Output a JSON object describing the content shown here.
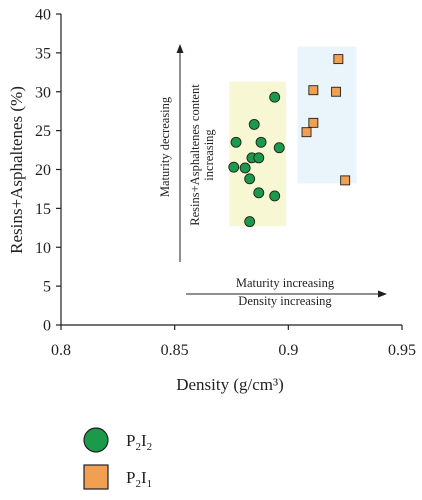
{
  "chart_data": {
    "type": "scatter",
    "xlabel": "Density (g/cm³)",
    "ylabel": "Resins+Asphaltenes (%)",
    "xlim": [
      0.8,
      0.95
    ],
    "ylim": [
      0,
      40
    ],
    "x_ticks": [
      "0.8",
      "0.85",
      "0.9",
      "0.95"
    ],
    "x_tick_values": [
      0.8,
      0.85,
      0.9,
      0.95
    ],
    "y_ticks": [
      "0",
      "5",
      "10",
      "15",
      "20",
      "25",
      "30",
      "35",
      "40"
    ],
    "y_tick_values": [
      0,
      5,
      10,
      15,
      20,
      25,
      30,
      35,
      40
    ],
    "grid": false,
    "legend_position": "bottom-left",
    "series": [
      {
        "name_parts": {
          "base1": "P",
          "sub1": "2",
          "base2": "I",
          "sub2": "2"
        },
        "marker": "circle",
        "color": "#1a9a4a",
        "points": [
          {
            "x": 0.894,
            "y": 29.3
          },
          {
            "x": 0.885,
            "y": 25.8
          },
          {
            "x": 0.877,
            "y": 23.5
          },
          {
            "x": 0.888,
            "y": 23.5
          },
          {
            "x": 0.896,
            "y": 22.8
          },
          {
            "x": 0.884,
            "y": 21.5
          },
          {
            "x": 0.887,
            "y": 21.5
          },
          {
            "x": 0.876,
            "y": 20.3
          },
          {
            "x": 0.881,
            "y": 20.2
          },
          {
            "x": 0.883,
            "y": 18.8
          },
          {
            "x": 0.887,
            "y": 17.0
          },
          {
            "x": 0.894,
            "y": 16.6
          },
          {
            "x": 0.883,
            "y": 13.3
          }
        ]
      },
      {
        "name_parts": {
          "base1": "P",
          "sub1": "2",
          "base2": "I",
          "sub2": "1"
        },
        "marker": "square",
        "color": "#f0a050",
        "points": [
          {
            "x": 0.922,
            "y": 34.2
          },
          {
            "x": 0.911,
            "y": 30.2
          },
          {
            "x": 0.921,
            "y": 30.0
          },
          {
            "x": 0.911,
            "y": 26.0
          },
          {
            "x": 0.908,
            "y": 24.8
          },
          {
            "x": 0.925,
            "y": 18.6
          }
        ]
      }
    ],
    "regions": [
      {
        "x0": 0.874,
        "x1": 0.899,
        "y0": 12.7,
        "y1": 31.3,
        "color": "#f7f7d4"
      },
      {
        "x0": 0.904,
        "x1": 0.93,
        "y0": 18.2,
        "y1": 35.8,
        "color": "#eaf4fb"
      }
    ],
    "annotations": {
      "vertical_arrow_text": "Maturity decreasing",
      "vertical_content_line1": "Resins+Asphaltenes content",
      "vertical_content_line2": "increasing",
      "horizontal_text_1": "Maturity increasing",
      "horizontal_text_2": "Density increasing"
    },
    "colors": {
      "axis": "#231f20"
    }
  }
}
